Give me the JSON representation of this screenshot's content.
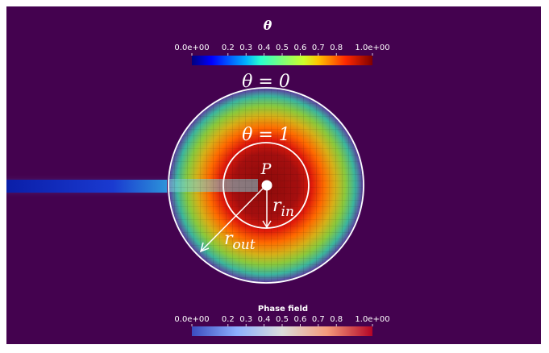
{
  "theta_bar": {
    "title": "θ",
    "ticks": [
      "0.0e+00",
      "0.2",
      "0.3",
      "0.4",
      "0.5",
      "0.6",
      "0.7",
      "0.8",
      "1.0e+00"
    ],
    "tick_values": [
      0.0,
      0.2,
      0.3,
      0.4,
      0.5,
      0.6,
      0.7,
      0.8,
      1.0
    ]
  },
  "phase_bar": {
    "title": "Phase field",
    "ticks": [
      "0.0e+00",
      "0.2",
      "0.3",
      "0.4",
      "0.5",
      "0.6",
      "0.7",
      "0.8",
      "1.0e+00"
    ],
    "tick_values": [
      0.0,
      0.2,
      0.3,
      0.4,
      0.5,
      0.6,
      0.7,
      0.8,
      1.0
    ]
  },
  "labels": {
    "outer_theta": "θ = 0",
    "inner_theta": "θ = 1",
    "point": "P",
    "r_in_base": "r",
    "r_in_sub": "in",
    "r_out_base": "r",
    "r_out_sub": "out"
  },
  "colors": {
    "background": "#44024f",
    "frame": "#ffffff",
    "circle_stroke": "#ffffff"
  }
}
